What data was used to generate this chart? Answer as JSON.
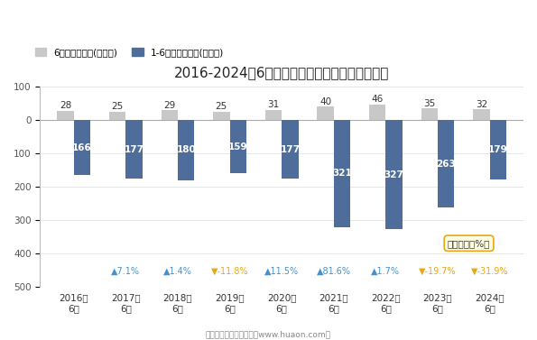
{
  "title": "2016-2024年6月郑州新郑综合保税区进出口总额",
  "categories": [
    "2016年\n6月",
    "2017年\n6月",
    "2018年\n6月",
    "2019年\n6月",
    "2020年\n6月",
    "2021年\n6月",
    "2022年\n6月",
    "2023年\n6月",
    "2024年\n6月"
  ],
  "june_values": [
    28,
    25,
    29,
    25,
    31,
    40,
    46,
    35,
    32
  ],
  "cumulative_values": [
    166,
    177,
    180,
    159,
    177,
    321,
    327,
    263,
    179
  ],
  "growth_rates": [
    null,
    7.1,
    1.4,
    -11.8,
    11.5,
    81.6,
    1.7,
    -19.7,
    -31.9
  ],
  "june_color": "#c8c8c8",
  "cumulative_color": "#4f6d9b",
  "positive_arrow_color": "#4a90c4",
  "negative_arrow_color": "#e6a817",
  "legend_june": "6月进出口总额(亿美元)",
  "legend_cumulative": "1-6月进出口总额(亿美元)",
  "ymin": -500,
  "ymax": 100,
  "footer": "制图：华经产业研究院（www.huaon.com）",
  "growth_label": "同比增速（%）",
  "background_color": "#ffffff",
  "bar_width": 0.32
}
